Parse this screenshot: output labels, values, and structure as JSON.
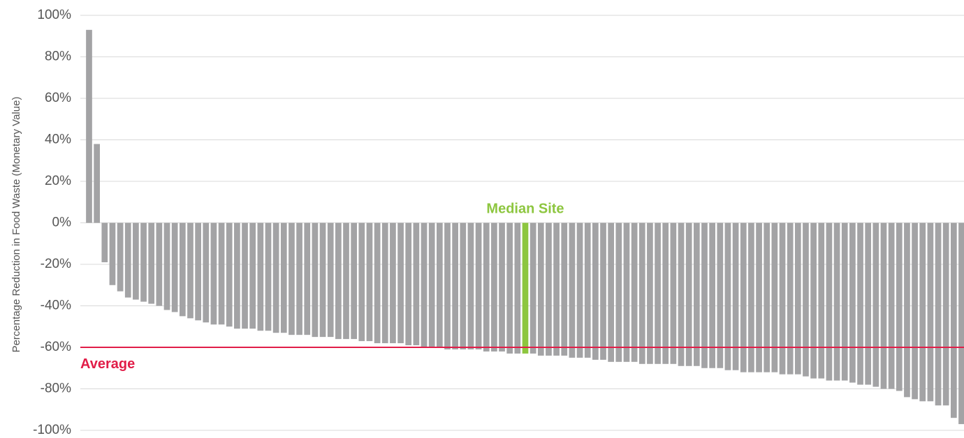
{
  "chart_data": {
    "type": "bar",
    "title": "",
    "xlabel": "",
    "ylabel": "Percentage Reduction in Food Waste (Monetary Value)",
    "ylim": [
      -100,
      100
    ],
    "yticks": [
      100,
      80,
      60,
      40,
      20,
      0,
      -20,
      -40,
      -60,
      -80,
      -100
    ],
    "ytick_labels": [
      "100%",
      "80%",
      "60%",
      "40%",
      "20%",
      "0%",
      "-20%",
      "-40%",
      "-60%",
      "-80%",
      "-100%"
    ],
    "grid": true,
    "values": [
      93,
      38,
      -19,
      -30,
      -33,
      -36,
      -37,
      -38,
      -39,
      -40,
      -42,
      -43,
      -45,
      -46,
      -47,
      -48,
      -49,
      -49,
      -50,
      -51,
      -51,
      -51,
      -52,
      -52,
      -53,
      -53,
      -54,
      -54,
      -54,
      -55,
      -55,
      -55,
      -56,
      -56,
      -56,
      -57,
      -57,
      -58,
      -58,
      -58,
      -58,
      -59,
      -59,
      -60,
      -60,
      -60,
      -61,
      -61,
      -61,
      -61,
      -61,
      -62,
      -62,
      -62,
      -63,
      -63,
      -63,
      -63,
      -64,
      -64,
      -64,
      -64,
      -65,
      -65,
      -65,
      -66,
      -66,
      -67,
      -67,
      -67,
      -67,
      -68,
      -68,
      -68,
      -68,
      -68,
      -69,
      -69,
      -69,
      -70,
      -70,
      -70,
      -71,
      -71,
      -72,
      -72,
      -72,
      -72,
      -72,
      -73,
      -73,
      -73,
      -74,
      -75,
      -75,
      -76,
      -76,
      -76,
      -77,
      -78,
      -78,
      -79,
      -80,
      -80,
      -81,
      -84,
      -85,
      -86,
      -86,
      -88,
      -88,
      -94,
      -97
    ],
    "bar_color": "#a3a3a5",
    "highlight": {
      "index": 56,
      "color": "#8dc63f",
      "label": "Median Site"
    },
    "reference_line": {
      "value": -60,
      "color": "#e11d48",
      "label": "Average"
    }
  }
}
